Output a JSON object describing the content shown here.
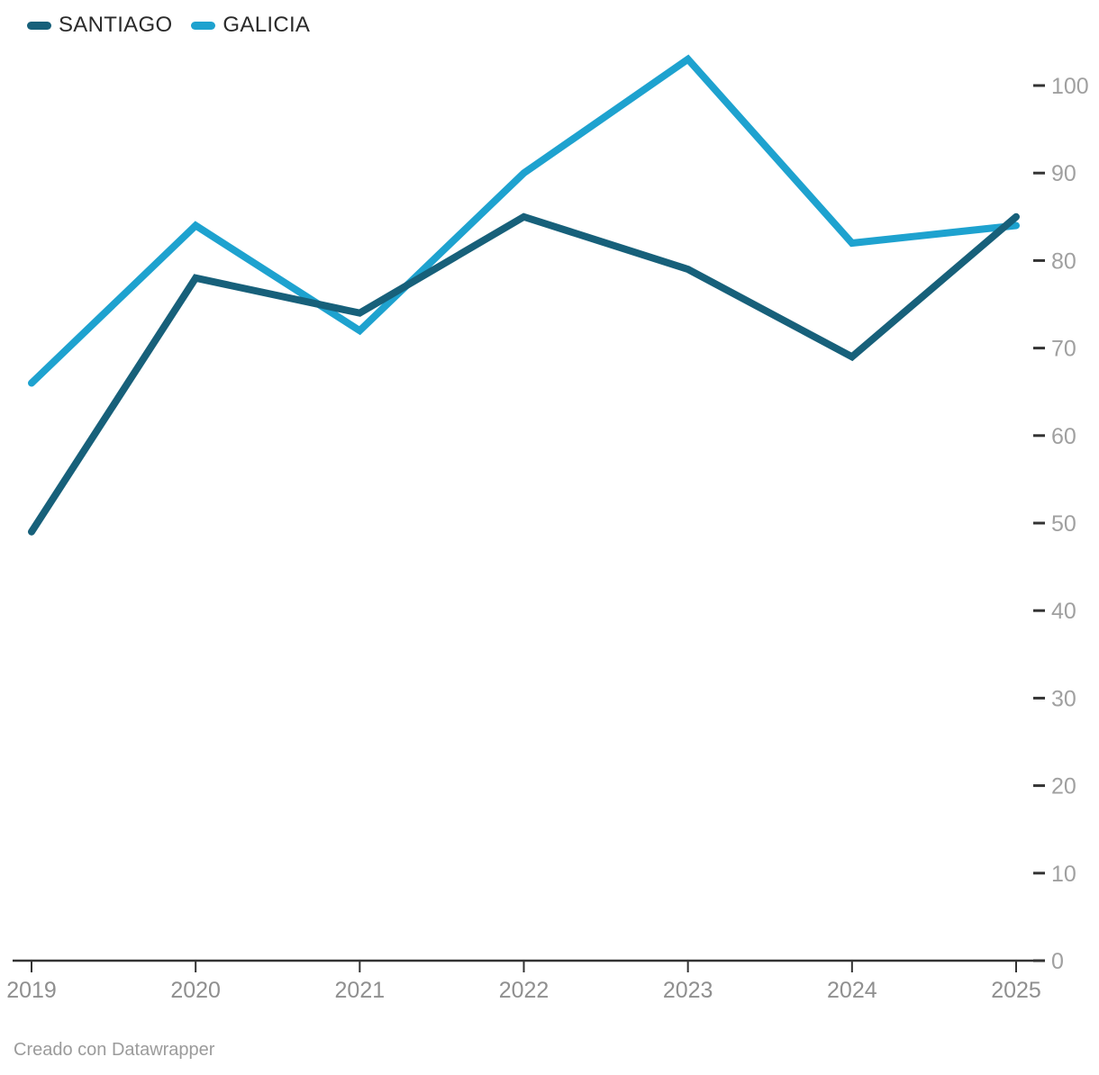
{
  "legend": {
    "items": [
      {
        "label": "SANTIAGO",
        "color": "#17607a"
      },
      {
        "label": "GALICIA",
        "color": "#1ea2cf"
      }
    ]
  },
  "footer": {
    "attribution": "Creado con Datawrapper"
  },
  "chart_data": {
    "type": "line",
    "categories": [
      "2019",
      "2020",
      "2021",
      "2022",
      "2023",
      "2024",
      "2025"
    ],
    "series": [
      {
        "name": "SANTIAGO",
        "color": "#17607a",
        "values": [
          49,
          78,
          74,
          85,
          79,
          69,
          85
        ]
      },
      {
        "name": "GALICIA",
        "color": "#1ea2cf",
        "values": [
          66,
          84,
          72,
          90,
          103,
          82,
          84
        ]
      }
    ],
    "y_ticks": [
      0,
      10,
      20,
      30,
      40,
      50,
      60,
      70,
      80,
      90,
      100
    ],
    "ylim": [
      0,
      110
    ],
    "xlabel": "",
    "ylabel": "",
    "grid": false,
    "legend_position": "top-left",
    "y_axis_side": "right",
    "axis_color": "#333333",
    "x_tick_label_color": "#8f8f8f",
    "y_tick_label_color": "#a0a0a0"
  }
}
